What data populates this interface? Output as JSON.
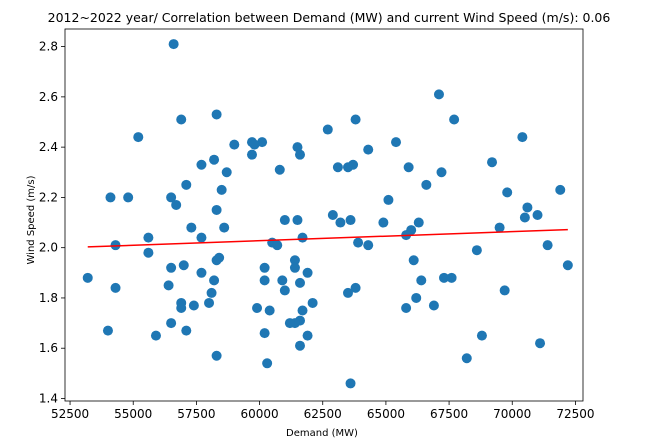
{
  "chart_data": {
    "type": "scatter",
    "title": "2012~2022 year/ Correlation between Demand (MW) and current Wind Speed (m/s): 0.06",
    "xlabel": "Demand (MW)",
    "ylabel": "Wind Speed (m/s)",
    "xlim": [
      52300,
      72800
    ],
    "ylim": [
      1.39,
      2.87
    ],
    "x_ticks": [
      52500,
      55000,
      57500,
      60000,
      62500,
      65000,
      67500,
      70000,
      72500
    ],
    "y_ticks": [
      1.4,
      1.6,
      1.8,
      2.0,
      2.2,
      2.4,
      2.6,
      2.8
    ],
    "grid": false,
    "colors": {
      "points": "#1f77b4",
      "trend": "#ff0000"
    },
    "trend_line": {
      "x": [
        53200,
        72200
      ],
      "y": [
        2.003,
        2.072
      ]
    },
    "points": [
      {
        "x": 56600,
        "y": 2.81
      },
      {
        "x": 67100,
        "y": 2.61
      },
      {
        "x": 60100,
        "y": 2.42
      },
      {
        "x": 58300,
        "y": 2.53
      },
      {
        "x": 56900,
        "y": 2.51
      },
      {
        "x": 63800,
        "y": 2.51
      },
      {
        "x": 67700,
        "y": 2.51
      },
      {
        "x": 55200,
        "y": 2.44
      },
      {
        "x": 70400,
        "y": 2.44
      },
      {
        "x": 59700,
        "y": 2.42
      },
      {
        "x": 62700,
        "y": 2.47
      },
      {
        "x": 65400,
        "y": 2.42
      },
      {
        "x": 59000,
        "y": 2.41
      },
      {
        "x": 59800,
        "y": 2.41
      },
      {
        "x": 61500,
        "y": 2.4
      },
      {
        "x": 64300,
        "y": 2.39
      },
      {
        "x": 59700,
        "y": 2.37
      },
      {
        "x": 61600,
        "y": 2.37
      },
      {
        "x": 58200,
        "y": 2.35
      },
      {
        "x": 57700,
        "y": 2.33
      },
      {
        "x": 63700,
        "y": 2.33
      },
      {
        "x": 69200,
        "y": 2.34
      },
      {
        "x": 63100,
        "y": 2.32
      },
      {
        "x": 63500,
        "y": 2.32
      },
      {
        "x": 65900,
        "y": 2.32
      },
      {
        "x": 67200,
        "y": 2.3
      },
      {
        "x": 58700,
        "y": 2.3
      },
      {
        "x": 60800,
        "y": 2.31
      },
      {
        "x": 57100,
        "y": 2.25
      },
      {
        "x": 66600,
        "y": 2.25
      },
      {
        "x": 58500,
        "y": 2.23
      },
      {
        "x": 71900,
        "y": 2.23
      },
      {
        "x": 69800,
        "y": 2.22
      },
      {
        "x": 54100,
        "y": 2.2
      },
      {
        "x": 54800,
        "y": 2.2
      },
      {
        "x": 56500,
        "y": 2.2
      },
      {
        "x": 65100,
        "y": 2.19
      },
      {
        "x": 56700,
        "y": 2.17
      },
      {
        "x": 70600,
        "y": 2.16
      },
      {
        "x": 58300,
        "y": 2.15
      },
      {
        "x": 70500,
        "y": 2.12
      },
      {
        "x": 71000,
        "y": 2.13
      },
      {
        "x": 62900,
        "y": 2.13
      },
      {
        "x": 61000,
        "y": 2.11
      },
      {
        "x": 61500,
        "y": 2.11
      },
      {
        "x": 63600,
        "y": 2.11
      },
      {
        "x": 63200,
        "y": 2.1
      },
      {
        "x": 64900,
        "y": 2.1
      },
      {
        "x": 66300,
        "y": 2.1
      },
      {
        "x": 58600,
        "y": 2.08
      },
      {
        "x": 57300,
        "y": 2.08
      },
      {
        "x": 69500,
        "y": 2.08
      },
      {
        "x": 66000,
        "y": 2.07
      },
      {
        "x": 55600,
        "y": 2.04
      },
      {
        "x": 57700,
        "y": 2.04
      },
      {
        "x": 61700,
        "y": 2.04
      },
      {
        "x": 65800,
        "y": 2.05
      },
      {
        "x": 54300,
        "y": 2.01
      },
      {
        "x": 60500,
        "y": 2.02
      },
      {
        "x": 60700,
        "y": 2.01
      },
      {
        "x": 63900,
        "y": 2.02
      },
      {
        "x": 64300,
        "y": 2.01
      },
      {
        "x": 71400,
        "y": 2.01
      },
      {
        "x": 68600,
        "y": 1.99
      },
      {
        "x": 55600,
        "y": 1.98
      },
      {
        "x": 58300,
        "y": 1.95
      },
      {
        "x": 58400,
        "y": 1.96
      },
      {
        "x": 61400,
        "y": 1.95
      },
      {
        "x": 66100,
        "y": 1.95
      },
      {
        "x": 72200,
        "y": 1.93
      },
      {
        "x": 56500,
        "y": 1.92
      },
      {
        "x": 57000,
        "y": 1.93
      },
      {
        "x": 60200,
        "y": 1.92
      },
      {
        "x": 61400,
        "y": 1.92
      },
      {
        "x": 57700,
        "y": 1.9
      },
      {
        "x": 61900,
        "y": 1.9
      },
      {
        "x": 53200,
        "y": 1.88
      },
      {
        "x": 58200,
        "y": 1.87
      },
      {
        "x": 60200,
        "y": 1.87
      },
      {
        "x": 60900,
        "y": 1.87
      },
      {
        "x": 61600,
        "y": 1.86
      },
      {
        "x": 66400,
        "y": 1.87
      },
      {
        "x": 67300,
        "y": 1.88
      },
      {
        "x": 67600,
        "y": 1.88
      },
      {
        "x": 54300,
        "y": 1.84
      },
      {
        "x": 56400,
        "y": 1.85
      },
      {
        "x": 61000,
        "y": 1.83
      },
      {
        "x": 63800,
        "y": 1.84
      },
      {
        "x": 69700,
        "y": 1.83
      },
      {
        "x": 58100,
        "y": 1.82
      },
      {
        "x": 63500,
        "y": 1.82
      },
      {
        "x": 66200,
        "y": 1.8
      },
      {
        "x": 56900,
        "y": 1.78
      },
      {
        "x": 57400,
        "y": 1.77
      },
      {
        "x": 58000,
        "y": 1.78
      },
      {
        "x": 62100,
        "y": 1.78
      },
      {
        "x": 66900,
        "y": 1.77
      },
      {
        "x": 56900,
        "y": 1.76
      },
      {
        "x": 59900,
        "y": 1.76
      },
      {
        "x": 60400,
        "y": 1.75
      },
      {
        "x": 61700,
        "y": 1.75
      },
      {
        "x": 65800,
        "y": 1.76
      },
      {
        "x": 61600,
        "y": 1.71
      },
      {
        "x": 61400,
        "y": 1.7
      },
      {
        "x": 61200,
        "y": 1.7
      },
      {
        "x": 56500,
        "y": 1.7
      },
      {
        "x": 54000,
        "y": 1.67
      },
      {
        "x": 57100,
        "y": 1.67
      },
      {
        "x": 60200,
        "y": 1.66
      },
      {
        "x": 55900,
        "y": 1.65
      },
      {
        "x": 61900,
        "y": 1.65
      },
      {
        "x": 68800,
        "y": 1.65
      },
      {
        "x": 71100,
        "y": 1.62
      },
      {
        "x": 61600,
        "y": 1.61
      },
      {
        "x": 58300,
        "y": 1.57
      },
      {
        "x": 68200,
        "y": 1.56
      },
      {
        "x": 60300,
        "y": 1.54
      },
      {
        "x": 63600,
        "y": 1.46
      }
    ]
  }
}
